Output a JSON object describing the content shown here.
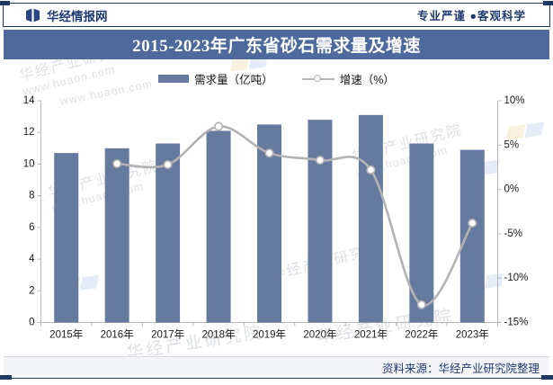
{
  "page": {
    "header": {
      "brand": "华经情报网",
      "slogan": "专业严谨 ●客观科学"
    },
    "footer": {
      "source": "资料来源：华经产业研究院整理"
    },
    "watermarks": {
      "org": "华经产业研究院",
      "url": "www.huaon.com"
    },
    "colors": {
      "bar": "#66799f",
      "banner": "#4e6a9c",
      "line": "#b3b3b3",
      "navy": "#1f3a6e",
      "border": "#1f3864",
      "axis": "#b8b8b8"
    }
  },
  "chart_data": {
    "type": "combo",
    "title": "2015-2023年广东省砂石需求量及增速",
    "categories": [
      "2015年",
      "2016年",
      "2017年",
      "2018年",
      "2019年",
      "2020年",
      "2021年",
      "2022年",
      "2023年"
    ],
    "series": [
      {
        "name": "需求量（亿吨）",
        "type": "bar",
        "yaxis": "left",
        "values": [
          10.7,
          11.0,
          11.3,
          12.1,
          12.5,
          12.8,
          13.1,
          11.3,
          10.9
        ]
      },
      {
        "name": "增速（%）",
        "type": "line",
        "yaxis": "right",
        "values": [
          null,
          2.9,
          2.8,
          7.1,
          4.1,
          3.3,
          2.2,
          -13.0,
          -3.8
        ]
      }
    ],
    "left_axis": {
      "min": 0,
      "max": 14,
      "ticks": [
        0,
        2,
        4,
        6,
        8,
        10,
        12,
        14
      ]
    },
    "right_axis": {
      "min": -15,
      "max": 10,
      "ticks": [
        10,
        5,
        0,
        -5,
        -10,
        -15
      ],
      "tick_labels": [
        "10%",
        "5%",
        "0%",
        "-5%",
        "-10%",
        "-15%"
      ]
    },
    "legend_position": "top",
    "grid": false
  }
}
